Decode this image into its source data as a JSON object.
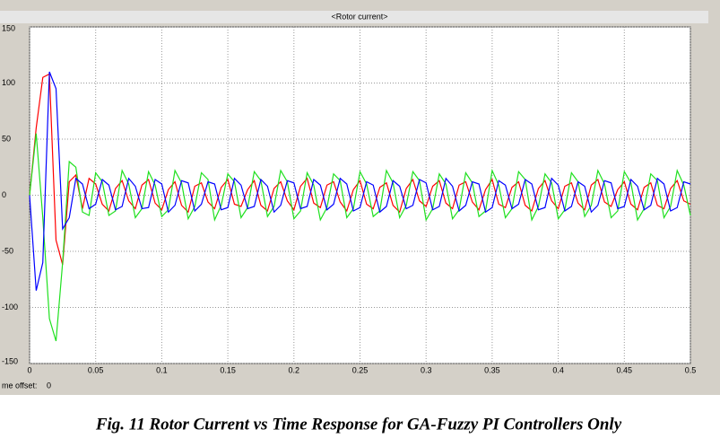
{
  "chart_data": {
    "type": "line",
    "title": "<Rotor current>",
    "caption": "Fig. 11 Rotor Current vs Time Response for GA-Fuzzy PI Controllers Only",
    "time_offset_label": "me offset:",
    "time_offset_value": "0",
    "x": [
      0,
      0.005,
      0.01,
      0.015,
      0.02,
      0.025,
      0.03,
      0.035,
      0.04,
      0.045,
      0.05,
      0.055,
      0.06,
      0.065,
      0.07,
      0.075,
      0.08,
      0.085,
      0.09,
      0.095,
      0.1,
      0.105,
      0.11,
      0.115,
      0.12,
      0.125,
      0.13,
      0.135,
      0.14,
      0.145,
      0.15,
      0.155,
      0.16,
      0.165,
      0.17,
      0.175,
      0.18,
      0.185,
      0.19,
      0.195,
      0.2,
      0.205,
      0.21,
      0.215,
      0.22,
      0.225,
      0.23,
      0.235,
      0.24,
      0.245,
      0.25,
      0.255,
      0.26,
      0.265,
      0.27,
      0.275,
      0.28,
      0.285,
      0.29,
      0.295,
      0.3,
      0.305,
      0.31,
      0.315,
      0.32,
      0.325,
      0.33,
      0.335,
      0.34,
      0.345,
      0.35,
      0.355,
      0.36,
      0.365,
      0.37,
      0.375,
      0.38,
      0.385,
      0.39,
      0.395,
      0.4,
      0.405,
      0.41,
      0.415,
      0.42,
      0.425,
      0.43,
      0.435,
      0.44,
      0.445,
      0.45,
      0.455,
      0.46,
      0.465,
      0.47,
      0.475,
      0.48,
      0.485,
      0.49,
      0.495,
      0.5
    ],
    "series": [
      {
        "name": "Red",
        "color": "#ff0000",
        "values": [
          0,
          60,
          105,
          108,
          -40,
          -62,
          12,
          18,
          -12,
          15,
          10,
          -8,
          -14,
          6,
          13,
          -5,
          -12,
          9,
          14,
          -7,
          -13,
          5,
          12,
          -9,
          -15,
          8,
          11,
          -6,
          -12,
          7,
          14,
          -8,
          -10,
          5,
          13,
          -9,
          -14,
          6,
          12,
          -5,
          -13,
          8,
          15,
          -7,
          -11,
          9,
          12,
          -6,
          -14,
          5,
          13,
          -8,
          -12,
          7,
          11,
          -9,
          -15,
          6,
          14,
          -5,
          -10,
          8,
          13,
          -7,
          -12,
          9,
          12,
          -6,
          -13,
          5,
          14,
          -8,
          -11,
          7,
          12,
          -9,
          -14,
          6,
          13,
          -5,
          -12,
          8,
          11,
          -7,
          -13,
          9,
          14,
          -6,
          -10,
          5,
          12,
          -8,
          -13,
          7,
          11,
          -9,
          -12,
          6,
          13,
          -5,
          -8
        ]
      },
      {
        "name": "Green",
        "color": "#1fe01f",
        "values": [
          0,
          55,
          -20,
          -110,
          -130,
          -60,
          30,
          25,
          -15,
          -18,
          20,
          12,
          -18,
          -14,
          22,
          10,
          -20,
          -12,
          21,
          9,
          -19,
          -13,
          22,
          11,
          -21,
          -10,
          20,
          14,
          -22,
          -9,
          19,
          12,
          -20,
          -11,
          21,
          13,
          -19,
          -10,
          22,
          12,
          -21,
          -14,
          20,
          9,
          -22,
          -11,
          19,
          13,
          -20,
          -12,
          21,
          10,
          -19,
          -14,
          22,
          11,
          -20,
          -9,
          21,
          13,
          -22,
          -12,
          19,
          10,
          -21,
          -13,
          20,
          11,
          -19,
          -14,
          22,
          9,
          -20,
          -12,
          21,
          14,
          -22,
          -10,
          19,
          11,
          -21,
          -13,
          20,
          12,
          -19,
          -9,
          22,
          10,
          -20,
          -14,
          21,
          11,
          -22,
          -12,
          19,
          13,
          -20,
          -10,
          22,
          9,
          -18
        ]
      },
      {
        "name": "Blue",
        "color": "#0000ff",
        "values": [
          0,
          -85,
          -60,
          110,
          95,
          -30,
          -20,
          15,
          10,
          -12,
          -8,
          14,
          9,
          -13,
          -10,
          15,
          8,
          -12,
          -11,
          14,
          10,
          -15,
          -9,
          13,
          11,
          -14,
          -8,
          12,
          10,
          -13,
          -11,
          15,
          9,
          -12,
          -10,
          14,
          8,
          -15,
          -9,
          13,
          11,
          -12,
          -10,
          14,
          9,
          -13,
          -8,
          15,
          10,
          -14,
          -11,
          12,
          9,
          -15,
          -10,
          13,
          8,
          -12,
          -9,
          14,
          11,
          -13,
          -10,
          15,
          8,
          -14,
          -9,
          12,
          10,
          -15,
          -11,
          13,
          9,
          -12,
          -8,
          14,
          10,
          -13,
          -11,
          15,
          9,
          -14,
          -10,
          12,
          8,
          -15,
          -9,
          13,
          11,
          -12,
          -10,
          14,
          8,
          -13,
          -9,
          15,
          10,
          -14,
          -11,
          12,
          10
        ]
      }
    ],
    "xlim": [
      0,
      0.5
    ],
    "ylim": [
      -150,
      150
    ],
    "xticks": [
      0,
      0.05,
      0.1,
      0.15,
      0.2,
      0.25,
      0.3,
      0.35,
      0.4,
      0.45,
      0.5
    ],
    "yticks": [
      150,
      100,
      50,
      0,
      -50,
      -100,
      -150
    ],
    "grid": true
  }
}
